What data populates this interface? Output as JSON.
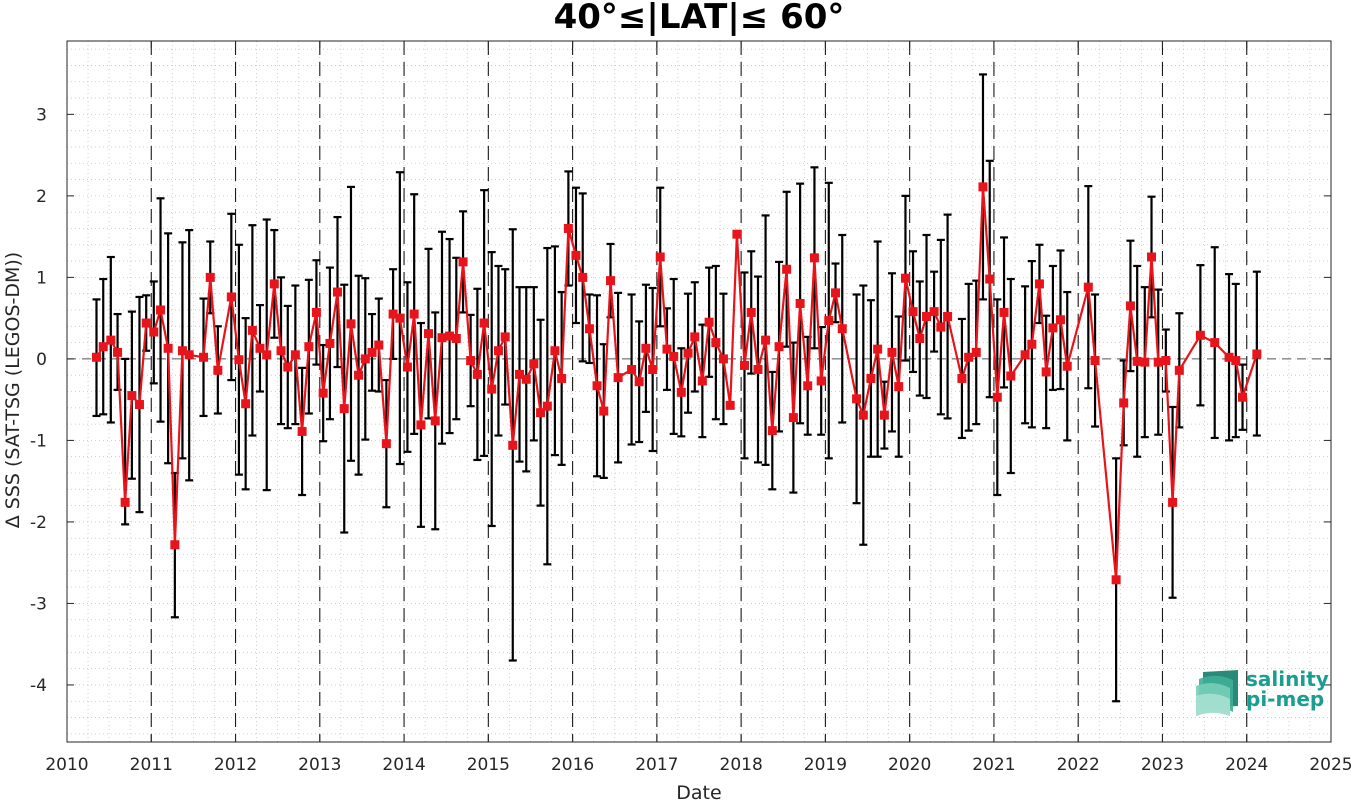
{
  "chart_data": {
    "type": "line",
    "title": "40°≤|LAT|≤ 60°",
    "xlabel": "Date",
    "ylabel": "Δ SSS (SAT-TSG (LEGOS-DM))",
    "xlim": [
      2010,
      2025
    ],
    "ylim": [
      -4.7,
      3.9
    ],
    "x_ticks": [
      "2010",
      "2011",
      "2012",
      "2013",
      "2014",
      "2015",
      "2016",
      "2017",
      "2018",
      "2019",
      "2020",
      "2021",
      "2022",
      "2023",
      "2024",
      "2025"
    ],
    "y_ticks": [
      "3",
      "2",
      "1",
      "0",
      "-1",
      "-2",
      "-3",
      "-4"
    ],
    "grid": true,
    "reference_line": 0,
    "year_boundaries_dashed": [
      "2011",
      "2012",
      "2013",
      "2014",
      "2015",
      "2016",
      "2017",
      "2018",
      "2019",
      "2020",
      "2021",
      "2022",
      "2023",
      "2024"
    ],
    "series": [
      {
        "marker": "square",
        "color": "#e8141c",
        "errorbar_color": "#000000",
        "points": [
          {
            "x": 2010.35,
            "y": 0.02,
            "lo": -0.7,
            "hi": 0.73
          },
          {
            "x": 2010.43,
            "y": 0.15,
            "lo": -0.68,
            "hi": 0.98
          },
          {
            "x": 2010.52,
            "y": 0.23,
            "lo": -0.78,
            "hi": 1.25
          },
          {
            "x": 2010.6,
            "y": 0.08,
            "lo": -0.38,
            "hi": 0.55
          },
          {
            "x": 2010.69,
            "y": -1.76,
            "lo": -2.03,
            "hi": 0.0
          },
          {
            "x": 2010.77,
            "y": -0.45,
            "lo": -1.47,
            "hi": 0.58
          },
          {
            "x": 2010.86,
            "y": -0.56,
            "lo": -1.88,
            "hi": 0.76
          },
          {
            "x": 2010.94,
            "y": 0.44,
            "lo": 0.1,
            "hi": 0.78
          },
          {
            "x": 2011.03,
            "y": 0.33,
            "lo": -0.3,
            "hi": 0.95
          },
          {
            "x": 2011.11,
            "y": 0.6,
            "lo": -0.77,
            "hi": 1.97
          },
          {
            "x": 2011.2,
            "y": 0.13,
            "lo": -1.28,
            "hi": 1.54
          },
          {
            "x": 2011.28,
            "y": -2.28,
            "lo": -3.17,
            "hi": -1.4
          },
          {
            "x": 2011.37,
            "y": 0.1,
            "lo": -1.22,
            "hi": 1.43
          },
          {
            "x": 2011.45,
            "y": 0.05,
            "lo": -1.49,
            "hi": 1.58
          },
          {
            "x": 2011.62,
            "y": 0.02,
            "lo": -0.7,
            "hi": 0.74
          },
          {
            "x": 2011.7,
            "y": 1.0,
            "lo": 0.56,
            "hi": 1.44
          },
          {
            "x": 2011.79,
            "y": -0.14,
            "lo": -0.67,
            "hi": 0.4
          },
          {
            "x": 2011.95,
            "y": 0.76,
            "lo": -0.26,
            "hi": 1.78
          },
          {
            "x": 2012.04,
            "y": -0.01,
            "lo": -1.42,
            "hi": 1.4
          },
          {
            "x": 2012.12,
            "y": -0.55,
            "lo": -1.6,
            "hi": 0.5
          },
          {
            "x": 2012.2,
            "y": 0.35,
            "lo": -0.94,
            "hi": 1.64
          },
          {
            "x": 2012.29,
            "y": 0.13,
            "lo": -0.4,
            "hi": 0.66
          },
          {
            "x": 2012.37,
            "y": 0.05,
            "lo": -1.61,
            "hi": 1.71
          },
          {
            "x": 2012.46,
            "y": 0.92,
            "lo": 0.26,
            "hi": 1.58
          },
          {
            "x": 2012.54,
            "y": 0.1,
            "lo": -0.8,
            "hi": 1.0
          },
          {
            "x": 2012.62,
            "y": -0.1,
            "lo": -0.85,
            "hi": 0.65
          },
          {
            "x": 2012.71,
            "y": 0.05,
            "lo": -0.8,
            "hi": 0.9
          },
          {
            "x": 2012.79,
            "y": -0.89,
            "lo": -1.67,
            "hi": -0.11
          },
          {
            "x": 2012.87,
            "y": 0.15,
            "lo": -0.67,
            "hi": 0.97
          },
          {
            "x": 2012.96,
            "y": 0.57,
            "lo": -0.07,
            "hi": 1.21
          },
          {
            "x": 2013.04,
            "y": -0.42,
            "lo": -1.01,
            "hi": 0.17
          },
          {
            "x": 2013.12,
            "y": 0.19,
            "lo": -0.74,
            "hi": 1.12
          },
          {
            "x": 2013.21,
            "y": 0.82,
            "lo": -0.1,
            "hi": 1.74
          },
          {
            "x": 2013.29,
            "y": -0.61,
            "lo": -2.13,
            "hi": 0.91
          },
          {
            "x": 2013.37,
            "y": 0.43,
            "lo": -1.25,
            "hi": 2.11
          },
          {
            "x": 2013.46,
            "y": -0.2,
            "lo": -1.42,
            "hi": 1.02
          },
          {
            "x": 2013.54,
            "y": 0.0,
            "lo": -0.99,
            "hi": 0.99
          },
          {
            "x": 2013.62,
            "y": 0.08,
            "lo": -0.39,
            "hi": 0.55
          },
          {
            "x": 2013.7,
            "y": 0.17,
            "lo": -0.4,
            "hi": 0.74
          },
          {
            "x": 2013.79,
            "y": -1.04,
            "lo": -1.82,
            "hi": -0.26
          },
          {
            "x": 2013.87,
            "y": 0.55,
            "lo": 0.0,
            "hi": 1.1
          },
          {
            "x": 2013.95,
            "y": 0.5,
            "lo": -1.29,
            "hi": 2.29
          },
          {
            "x": 2014.04,
            "y": -0.1,
            "lo": -1.14,
            "hi": 0.94
          },
          {
            "x": 2014.12,
            "y": 0.55,
            "lo": -0.92,
            "hi": 2.02
          },
          {
            "x": 2014.2,
            "y": -0.81,
            "lo": -2.06,
            "hi": 0.44
          },
          {
            "x": 2014.29,
            "y": 0.31,
            "lo": -0.73,
            "hi": 1.35
          },
          {
            "x": 2014.37,
            "y": -0.76,
            "lo": -2.09,
            "hi": 0.57
          },
          {
            "x": 2014.45,
            "y": 0.26,
            "lo": -1.04,
            "hi": 1.56
          },
          {
            "x": 2014.54,
            "y": 0.28,
            "lo": -0.91,
            "hi": 1.47
          },
          {
            "x": 2014.62,
            "y": 0.25,
            "lo": -0.74,
            "hi": 1.24
          },
          {
            "x": 2014.7,
            "y": 1.19,
            "lo": 0.57,
            "hi": 1.81
          },
          {
            "x": 2014.79,
            "y": -0.02,
            "lo": -0.58,
            "hi": 0.54
          },
          {
            "x": 2014.87,
            "y": -0.19,
            "lo": -1.24,
            "hi": 0.86
          },
          {
            "x": 2014.95,
            "y": 0.44,
            "lo": -1.19,
            "hi": 2.07
          },
          {
            "x": 2015.04,
            "y": -0.37,
            "lo": -2.05,
            "hi": 1.31
          },
          {
            "x": 2015.12,
            "y": 0.1,
            "lo": -0.94,
            "hi": 1.14
          },
          {
            "x": 2015.2,
            "y": 0.27,
            "lo": -0.56,
            "hi": 1.1
          },
          {
            "x": 2015.29,
            "y": -1.06,
            "lo": -3.7,
            "hi": 1.59
          },
          {
            "x": 2015.37,
            "y": -0.19,
            "lo": -1.26,
            "hi": 0.88
          },
          {
            "x": 2015.45,
            "y": -0.25,
            "lo": -1.38,
            "hi": 0.88
          },
          {
            "x": 2015.54,
            "y": -0.06,
            "lo": -1.0,
            "hi": 0.88
          },
          {
            "x": 2015.62,
            "y": -0.66,
            "lo": -1.8,
            "hi": 0.48
          },
          {
            "x": 2015.7,
            "y": -0.58,
            "lo": -2.52,
            "hi": 1.36
          },
          {
            "x": 2015.79,
            "y": 0.1,
            "lo": -1.18,
            "hi": 1.38
          },
          {
            "x": 2015.87,
            "y": -0.24,
            "lo": -1.3,
            "hi": 0.82
          },
          {
            "x": 2015.95,
            "y": 1.6,
            "lo": 0.9,
            "hi": 2.3
          },
          {
            "x": 2016.04,
            "y": 1.27,
            "lo": 0.44,
            "hi": 2.1
          },
          {
            "x": 2016.12,
            "y": 1.0,
            "lo": -0.03,
            "hi": 2.03
          },
          {
            "x": 2016.2,
            "y": 0.37,
            "lo": -0.05,
            "hi": 0.79
          },
          {
            "x": 2016.29,
            "y": -0.33,
            "lo": -1.44,
            "hi": 0.78
          },
          {
            "x": 2016.37,
            "y": -0.64,
            "lo": -1.46,
            "hi": 0.18
          },
          {
            "x": 2016.45,
            "y": 0.96,
            "lo": 0.51,
            "hi": 1.41
          },
          {
            "x": 2016.54,
            "y": -0.23,
            "lo": -1.27,
            "hi": 0.81
          },
          {
            "x": 2016.7,
            "y": -0.13,
            "lo": -1.05,
            "hi": 0.79
          },
          {
            "x": 2016.79,
            "y": -0.28,
            "lo": -1.02,
            "hi": 0.46
          },
          {
            "x": 2016.87,
            "y": 0.13,
            "lo": -0.65,
            "hi": 0.91
          },
          {
            "x": 2016.95,
            "y": -0.13,
            "lo": -1.13,
            "hi": 0.87
          },
          {
            "x": 2017.04,
            "y": 1.25,
            "lo": 0.4,
            "hi": 2.1
          },
          {
            "x": 2017.12,
            "y": 0.12,
            "lo": -0.38,
            "hi": 0.62
          },
          {
            "x": 2017.2,
            "y": 0.03,
            "lo": -0.92,
            "hi": 0.98
          },
          {
            "x": 2017.29,
            "y": -0.41,
            "lo": -0.95,
            "hi": 0.13
          },
          {
            "x": 2017.37,
            "y": 0.07,
            "lo": -0.66,
            "hi": 0.8
          },
          {
            "x": 2017.45,
            "y": 0.27,
            "lo": -0.4,
            "hi": 0.94
          },
          {
            "x": 2017.54,
            "y": -0.27,
            "lo": -0.96,
            "hi": 0.42
          },
          {
            "x": 2017.62,
            "y": 0.45,
            "lo": -0.22,
            "hi": 1.12
          },
          {
            "x": 2017.7,
            "y": 0.2,
            "lo": -0.74,
            "hi": 1.14
          },
          {
            "x": 2017.79,
            "y": 0.0,
            "lo": -0.8,
            "hi": 0.8
          },
          {
            "x": 2017.87,
            "y": -0.57,
            "lo": -0.6,
            "hi": -0.54
          },
          {
            "x": 2017.95,
            "y": 1.53,
            "lo": 1.5,
            "hi": 1.56
          },
          {
            "x": 2018.04,
            "y": -0.08,
            "lo": -1.22,
            "hi": 1.06
          },
          {
            "x": 2018.12,
            "y": 0.57,
            "lo": -0.18,
            "hi": 1.32
          },
          {
            "x": 2018.2,
            "y": -0.13,
            "lo": -1.27,
            "hi": 1.01
          },
          {
            "x": 2018.29,
            "y": 0.23,
            "lo": -1.3,
            "hi": 1.76
          },
          {
            "x": 2018.37,
            "y": -0.88,
            "lo": -1.6,
            "hi": -0.16
          },
          {
            "x": 2018.45,
            "y": 0.15,
            "lo": -0.89,
            "hi": 1.19
          },
          {
            "x": 2018.54,
            "y": 1.1,
            "lo": 0.15,
            "hi": 2.05
          },
          {
            "x": 2018.62,
            "y": -0.72,
            "lo": -1.64,
            "hi": 0.2
          },
          {
            "x": 2018.7,
            "y": 0.68,
            "lo": -0.79,
            "hi": 2.15
          },
          {
            "x": 2018.79,
            "y": -0.33,
            "lo": -0.93,
            "hi": 0.27
          },
          {
            "x": 2018.87,
            "y": 1.24,
            "lo": 0.13,
            "hi": 2.35
          },
          {
            "x": 2018.95,
            "y": -0.27,
            "lo": -0.93,
            "hi": 0.39
          },
          {
            "x": 2019.04,
            "y": 0.47,
            "lo": -1.22,
            "hi": 2.16
          },
          {
            "x": 2019.12,
            "y": 0.81,
            "lo": 0.45,
            "hi": 1.17
          },
          {
            "x": 2019.2,
            "y": 0.37,
            "lo": -0.78,
            "hi": 1.52
          },
          {
            "x": 2019.37,
            "y": -0.49,
            "lo": -1.77,
            "hi": 0.79
          },
          {
            "x": 2019.45,
            "y": -0.69,
            "lo": -2.28,
            "hi": 0.9
          },
          {
            "x": 2019.54,
            "y": -0.24,
            "lo": -1.2,
            "hi": 0.72
          },
          {
            "x": 2019.62,
            "y": 0.12,
            "lo": -1.2,
            "hi": 1.44
          },
          {
            "x": 2019.7,
            "y": -0.69,
            "lo": -1.1,
            "hi": -0.28
          },
          {
            "x": 2019.79,
            "y": 0.08,
            "lo": -0.89,
            "hi": 1.05
          },
          {
            "x": 2019.87,
            "y": -0.34,
            "lo": -1.2,
            "hi": 0.52
          },
          {
            "x": 2019.95,
            "y": 0.99,
            "lo": -0.02,
            "hi": 2.0
          },
          {
            "x": 2020.04,
            "y": 0.58,
            "lo": -0.16,
            "hi": 1.32
          },
          {
            "x": 2020.12,
            "y": 0.25,
            "lo": -0.45,
            "hi": 0.95
          },
          {
            "x": 2020.2,
            "y": 0.52,
            "lo": -0.48,
            "hi": 1.52
          },
          {
            "x": 2020.29,
            "y": 0.58,
            "lo": 0.09,
            "hi": 1.07
          },
          {
            "x": 2020.37,
            "y": 0.39,
            "lo": -0.68,
            "hi": 1.46
          },
          {
            "x": 2020.45,
            "y": 0.52,
            "lo": -0.73,
            "hi": 1.77
          },
          {
            "x": 2020.62,
            "y": -0.24,
            "lo": -0.97,
            "hi": 0.49
          },
          {
            "x": 2020.7,
            "y": 0.02,
            "lo": -0.88,
            "hi": 0.92
          },
          {
            "x": 2020.79,
            "y": 0.08,
            "lo": -0.8,
            "hi": 0.96
          },
          {
            "x": 2020.87,
            "y": 2.11,
            "lo": 0.73,
            "hi": 3.49
          },
          {
            "x": 2020.95,
            "y": 0.98,
            "lo": -0.47,
            "hi": 2.43
          },
          {
            "x": 2021.04,
            "y": -0.47,
            "lo": -1.67,
            "hi": 0.73
          },
          {
            "x": 2021.12,
            "y": 0.57,
            "lo": -0.35,
            "hi": 1.49
          },
          {
            "x": 2021.2,
            "y": -0.21,
            "lo": -1.4,
            "hi": 0.98
          },
          {
            "x": 2021.37,
            "y": 0.05,
            "lo": -0.79,
            "hi": 0.89
          },
          {
            "x": 2021.45,
            "y": 0.18,
            "lo": -0.84,
            "hi": 1.2
          },
          {
            "x": 2021.54,
            "y": 0.92,
            "lo": 0.44,
            "hi": 1.4
          },
          {
            "x": 2021.62,
            "y": -0.16,
            "lo": -0.85,
            "hi": 0.53
          },
          {
            "x": 2021.7,
            "y": 0.38,
            "lo": -0.38,
            "hi": 1.14
          },
          {
            "x": 2021.79,
            "y": 0.48,
            "lo": -0.37,
            "hi": 1.33
          },
          {
            "x": 2021.87,
            "y": -0.09,
            "lo": -1.0,
            "hi": 0.82
          },
          {
            "x": 2022.12,
            "y": 0.88,
            "lo": -0.36,
            "hi": 2.12
          },
          {
            "x": 2022.2,
            "y": -0.02,
            "lo": -0.83,
            "hi": 0.79
          },
          {
            "x": 2022.45,
            "y": -2.71,
            "lo": -4.2,
            "hi": -1.22
          },
          {
            "x": 2022.54,
            "y": -0.54,
            "lo": -1.06,
            "hi": -0.02
          },
          {
            "x": 2022.62,
            "y": 0.65,
            "lo": -0.15,
            "hi": 1.45
          },
          {
            "x": 2022.7,
            "y": -0.03,
            "lo": -1.2,
            "hi": 1.14
          },
          {
            "x": 2022.79,
            "y": -0.04,
            "lo": -0.96,
            "hi": 0.88
          },
          {
            "x": 2022.87,
            "y": 1.25,
            "lo": 0.51,
            "hi": 1.99
          },
          {
            "x": 2022.95,
            "y": -0.04,
            "lo": -0.93,
            "hi": 0.85
          },
          {
            "x": 2023.04,
            "y": -0.02,
            "lo": -0.4,
            "hi": 0.36
          },
          {
            "x": 2023.12,
            "y": -1.76,
            "lo": -2.93,
            "hi": -0.59
          },
          {
            "x": 2023.2,
            "y": -0.14,
            "lo": -0.84,
            "hi": 0.56
          },
          {
            "x": 2023.45,
            "y": 0.29,
            "lo": -0.57,
            "hi": 1.15
          },
          {
            "x": 2023.62,
            "y": 0.2,
            "lo": -0.97,
            "hi": 1.37
          },
          {
            "x": 2023.79,
            "y": 0.02,
            "lo": -1.0,
            "hi": 1.04
          },
          {
            "x": 2023.87,
            "y": -0.02,
            "lo": -0.96,
            "hi": 0.92
          },
          {
            "x": 2023.95,
            "y": -0.47,
            "lo": -0.87,
            "hi": -0.07
          },
          {
            "x": 2024.12,
            "y": 0.06,
            "lo": -0.94,
            "hi": 1.07
          }
        ]
      }
    ]
  },
  "logo": {
    "line1": "salinity",
    "line2": "pi-mep"
  }
}
